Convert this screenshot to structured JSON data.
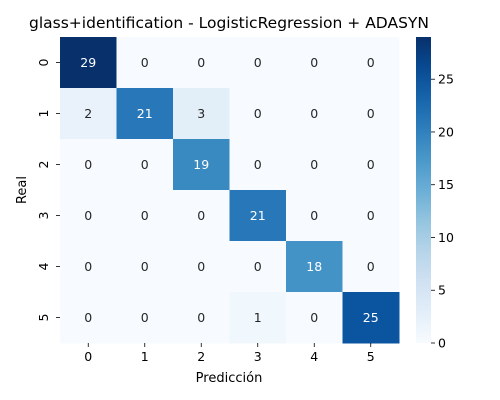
{
  "chart_data": {
    "type": "heatmap",
    "title": "glass+identification - LogisticRegression + ADASYN",
    "xlabel": "Predicción",
    "ylabel": "Real",
    "x_categories": [
      "0",
      "1",
      "2",
      "3",
      "4",
      "5"
    ],
    "y_categories": [
      "0",
      "1",
      "2",
      "3",
      "4",
      "5"
    ],
    "values": [
      [
        29,
        0,
        0,
        0,
        0,
        0
      ],
      [
        2,
        21,
        3,
        0,
        0,
        0
      ],
      [
        0,
        0,
        19,
        0,
        0,
        0
      ],
      [
        0,
        0,
        0,
        21,
        0,
        0
      ],
      [
        0,
        0,
        0,
        0,
        18,
        0
      ],
      [
        0,
        0,
        0,
        1,
        0,
        25
      ]
    ],
    "colorbar": {
      "min": 0,
      "max": 29,
      "ticks": [
        "0",
        "5",
        "10",
        "15",
        "20",
        "25"
      ],
      "colormap": "Blues",
      "color_low": "#f7fbff",
      "color_high": "#08306b"
    }
  }
}
